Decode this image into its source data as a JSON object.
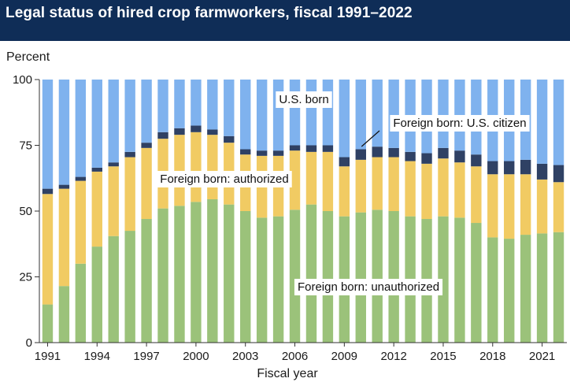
{
  "header": {
    "title": "Legal status of hired crop farmworkers, fiscal 1991–2022"
  },
  "chart_data": {
    "type": "bar",
    "stacked": true,
    "title": "Legal status of hired crop farmworkers, fiscal 1991–2022",
    "xlabel": "Fiscal year",
    "ylabel": "Percent",
    "ylim": [
      0,
      100
    ],
    "yticks": [
      0,
      25,
      50,
      75,
      100
    ],
    "xtick_labels": [
      "1991",
      "1994",
      "1997",
      "2000",
      "2003",
      "2006",
      "2009",
      "2012",
      "2015",
      "2018",
      "2021"
    ],
    "categories": [
      "1991",
      "1992",
      "1993",
      "1994",
      "1995",
      "1996",
      "1997",
      "1998",
      "1999",
      "2000",
      "2001",
      "2002",
      "2003",
      "2004",
      "2005",
      "2006",
      "2007",
      "2008",
      "2009",
      "2010",
      "2011",
      "2012",
      "2013",
      "2014",
      "2015",
      "2016",
      "2017",
      "2018",
      "2019",
      "2020",
      "2021",
      "2022"
    ],
    "series": [
      {
        "name": "Foreign born: unauthorized",
        "color": "#9bc27a",
        "values": [
          14.5,
          21.5,
          30.0,
          36.5,
          40.5,
          42.5,
          47.0,
          51.0,
          52.0,
          53.5,
          54.5,
          52.5,
          50.0,
          47.5,
          48.0,
          50.5,
          52.5,
          50.0,
          48.0,
          49.5,
          50.5,
          50.0,
          48.0,
          47.0,
          48.0,
          47.5,
          45.5,
          40.0,
          39.5,
          41.0,
          41.5,
          42.0
        ]
      },
      {
        "name": "Foreign born: authorized",
        "color": "#f1cb63",
        "values": [
          42.0,
          37.0,
          31.5,
          28.5,
          26.5,
          28.0,
          27.0,
          26.5,
          27.0,
          26.5,
          24.5,
          23.5,
          21.5,
          23.5,
          23.0,
          22.5,
          20.0,
          22.5,
          19.0,
          20.0,
          20.0,
          20.5,
          21.0,
          21.0,
          22.0,
          21.0,
          21.5,
          24.0,
          24.5,
          23.0,
          20.5,
          19.0
        ]
      },
      {
        "name": "Foreign born: U.S. citizen",
        "color": "#2f4164",
        "values": [
          2.0,
          1.5,
          1.5,
          1.5,
          1.5,
          2.0,
          2.0,
          2.5,
          2.5,
          2.5,
          2.0,
          2.5,
          2.0,
          2.0,
          2.0,
          2.0,
          2.5,
          2.5,
          3.5,
          4.0,
          4.0,
          3.5,
          3.5,
          4.0,
          4.0,
          4.5,
          4.5,
          5.0,
          5.0,
          5.5,
          6.0,
          6.5
        ]
      },
      {
        "name": "U.S. born",
        "color": "#7fb2ee",
        "values": [
          41.5,
          40.0,
          37.0,
          33.5,
          31.5,
          27.5,
          24.0,
          20.0,
          18.5,
          17.5,
          19.0,
          21.5,
          26.5,
          27.0,
          27.0,
          25.0,
          25.0,
          25.0,
          29.5,
          26.5,
          25.5,
          26.0,
          27.5,
          28.0,
          26.0,
          27.0,
          28.5,
          31.0,
          31.0,
          30.5,
          32.0,
          32.5
        ]
      }
    ],
    "annotations": [
      {
        "text": "U.S. born"
      },
      {
        "text": "Foreign born: U.S. citizen"
      },
      {
        "text": "Foreign born: authorized"
      },
      {
        "text": "Foreign born: unauthorized"
      }
    ]
  }
}
